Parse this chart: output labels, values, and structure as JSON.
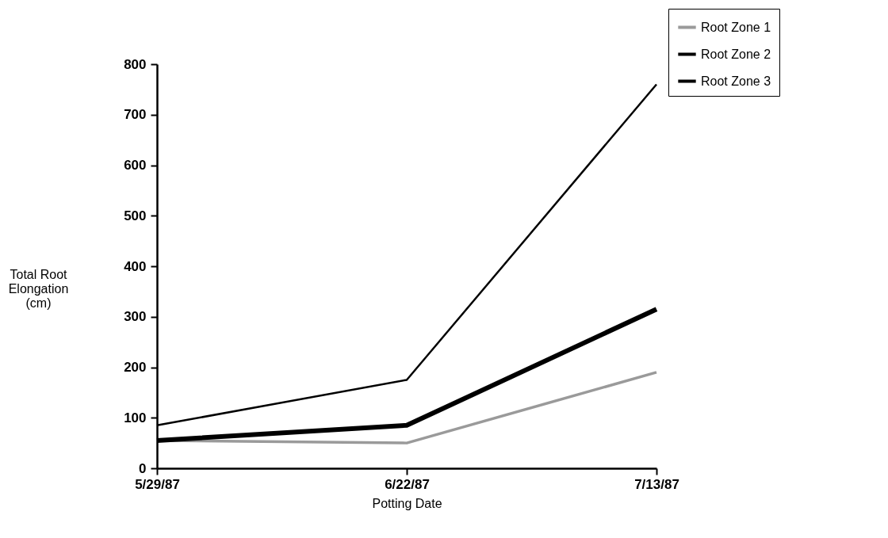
{
  "chart_data": {
    "type": "line",
    "xlabel": "Potting Date",
    "ylabel": "Total Root Elongation (cm)",
    "categories": [
      "5/29/87",
      "6/22/87",
      "7/13/87"
    ],
    "series": [
      {
        "name": "Root Zone 1",
        "color": "#9a9a9a",
        "values": [
          55,
          50,
          190
        ]
      },
      {
        "name": "Root Zone 2",
        "color": "#000000",
        "values": [
          55,
          85,
          315
        ]
      },
      {
        "name": "Root Zone 3",
        "color": "#000000",
        "values": [
          85,
          175,
          760
        ]
      }
    ],
    "ylim": [
      0,
      800
    ],
    "yticks": [
      0,
      100,
      200,
      300,
      400,
      500,
      600,
      700,
      800
    ],
    "grid": false,
    "legend": "top right",
    "marker": "none",
    "line_style": "solid"
  }
}
